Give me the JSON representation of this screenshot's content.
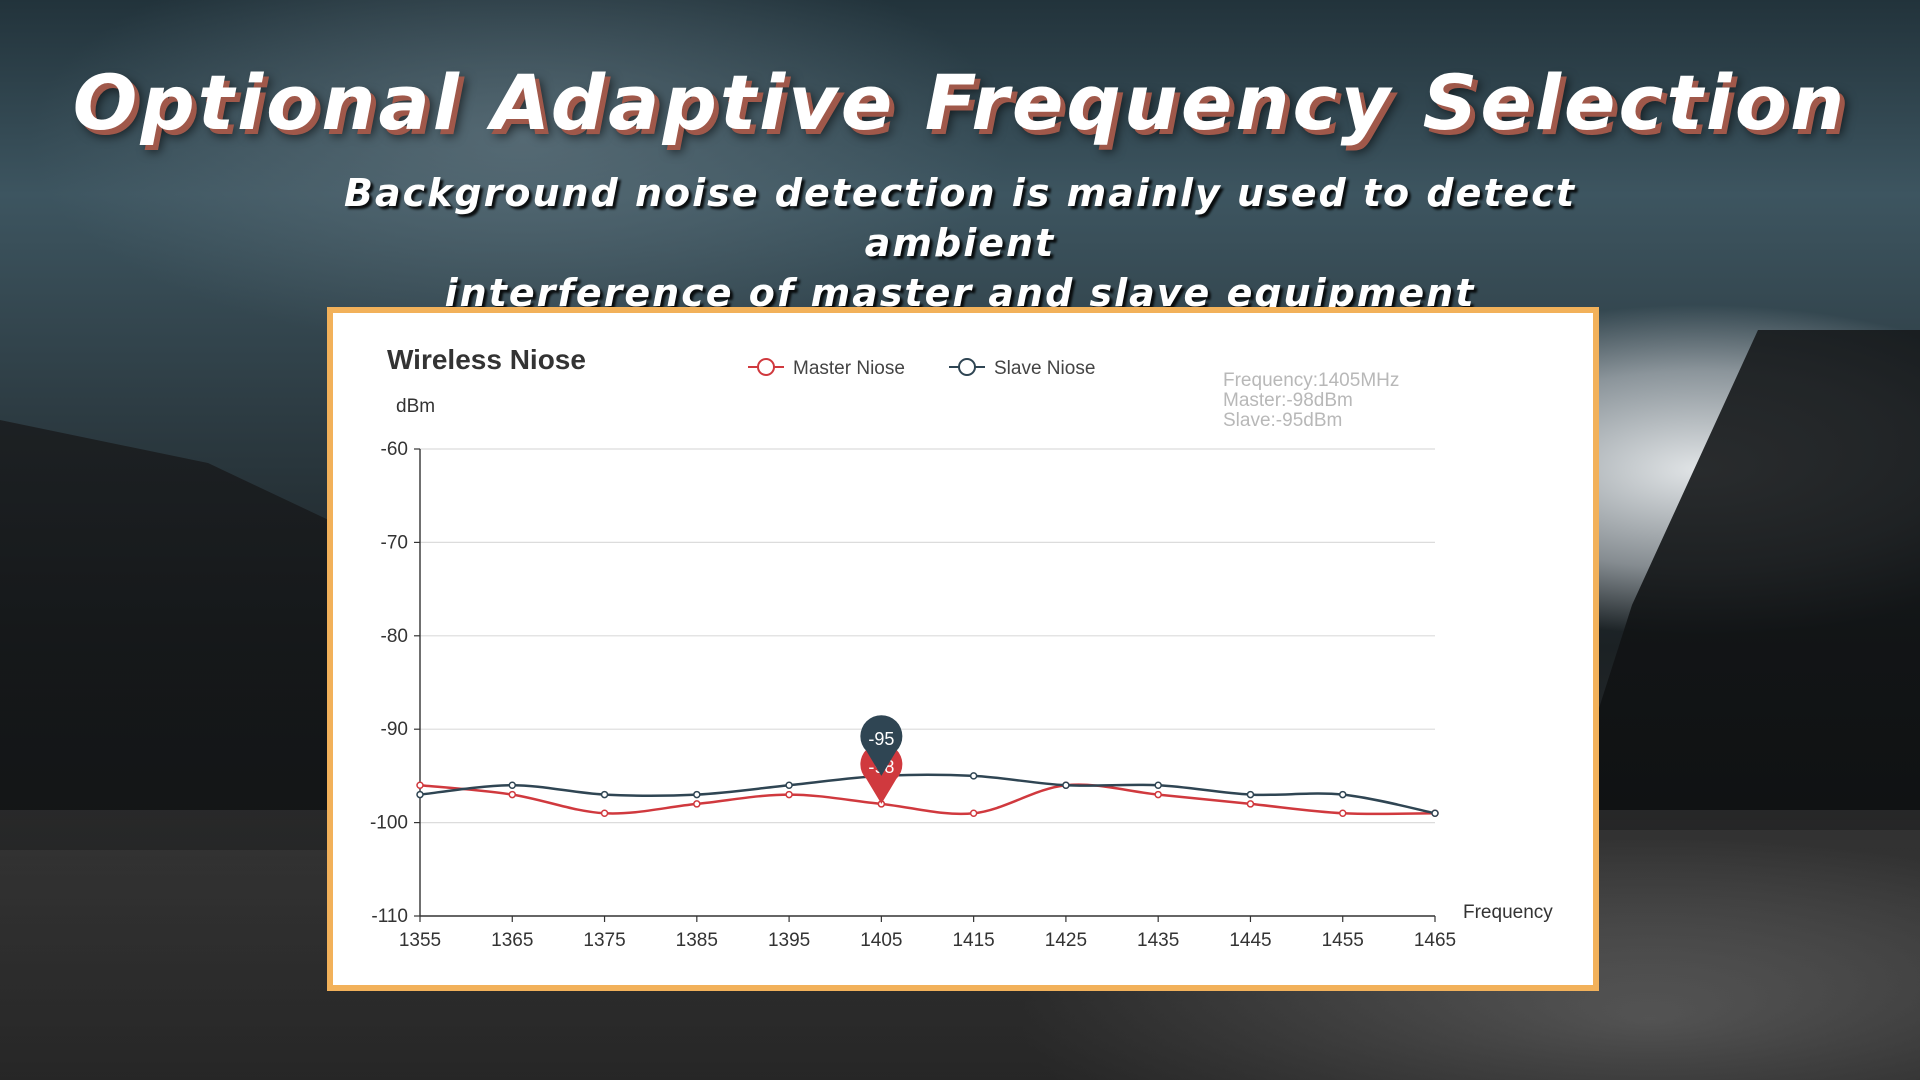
{
  "header": {
    "title": "Optional Adaptive Frequency Selection",
    "subtitle_line1": "Background noise detection is mainly used to detect ambient",
    "subtitle_line2": "interference of master and slave equipment"
  },
  "tooltip": {
    "frequency": "Frequency:1405MHz",
    "master": "Master:-98dBm",
    "slave": "Slave:-95dBm"
  },
  "markers": {
    "slave_value": "-95",
    "master_value": "-98"
  },
  "colors": {
    "master": "#d0393e",
    "slave": "#2f4553",
    "panel_border": "#f2b15a",
    "grid": "#dcdcdc",
    "axis": "#333333"
  },
  "chart_data": {
    "type": "line",
    "title": "Wireless Niose",
    "ylabel": "dBm",
    "xlabel": "Frequency",
    "ylim": [
      -110,
      -60
    ],
    "xlim": [
      1355,
      1465
    ],
    "y_ticks": [
      -60,
      -70,
      -80,
      -90,
      -100,
      -110
    ],
    "x": [
      1355,
      1365,
      1375,
      1385,
      1395,
      1405,
      1415,
      1425,
      1435,
      1445,
      1455,
      1465
    ],
    "series": [
      {
        "name": "Master Niose",
        "values": [
          -96,
          -97,
          -99,
          -98,
          -97,
          -98,
          -99,
          -96,
          -97,
          -98,
          -99,
          -99
        ]
      },
      {
        "name": "Slave Niose",
        "values": [
          -97,
          -96,
          -97,
          -97,
          -96,
          -95,
          -95,
          -96,
          -96,
          -97,
          -97,
          -99
        ]
      }
    ],
    "grid": true,
    "legend_position": "top-center"
  }
}
